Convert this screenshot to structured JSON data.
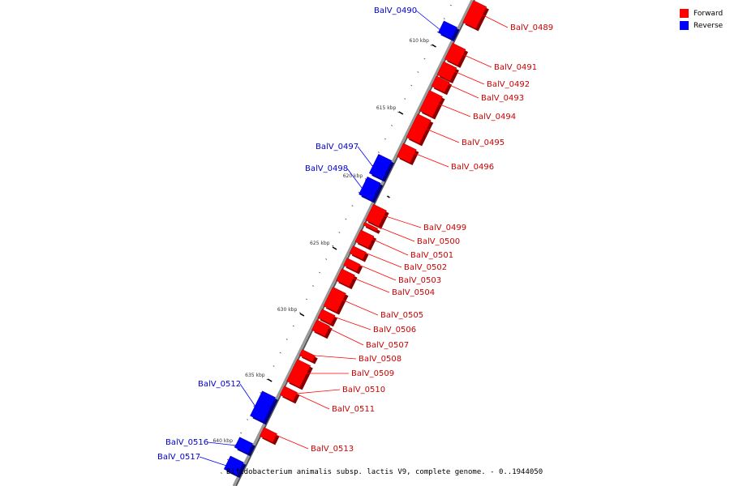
{
  "caption": "Bifidobacterium animalis subsp. lactis V9, complete genome. - 0..1944050",
  "legend": [
    {
      "label": "Forward",
      "color": "#ff0000"
    },
    {
      "label": "Reverse",
      "color": "#0000ff"
    }
  ],
  "colors": {
    "forward": "#ff0000",
    "reverse": "#0000ff",
    "forward_label": "#cc0000",
    "reverse_label": "#0000cc",
    "backbone": "#999999"
  },
  "scale_ticks": [
    "610 kbp",
    "615 kbp",
    "620 kbp",
    "625 kbp",
    "630 kbp",
    "635 kbp",
    "640 kbp"
  ],
  "genes": [
    {
      "name": "BalV_0489",
      "strand": "forward"
    },
    {
      "name": "BalV_0490",
      "strand": "reverse"
    },
    {
      "name": "BalV_0491",
      "strand": "forward"
    },
    {
      "name": "BalV_0492",
      "strand": "forward"
    },
    {
      "name": "BalV_0493",
      "strand": "forward"
    },
    {
      "name": "BalV_0494",
      "strand": "forward"
    },
    {
      "name": "BalV_0495",
      "strand": "forward"
    },
    {
      "name": "BalV_0496",
      "strand": "forward"
    },
    {
      "name": "BalV_0497",
      "strand": "reverse"
    },
    {
      "name": "BalV_0498",
      "strand": "reverse"
    },
    {
      "name": "BalV_0499",
      "strand": "forward"
    },
    {
      "name": "BalV_0500",
      "strand": "forward"
    },
    {
      "name": "BalV_0501",
      "strand": "forward"
    },
    {
      "name": "BalV_0502",
      "strand": "forward"
    },
    {
      "name": "BalV_0503",
      "strand": "forward"
    },
    {
      "name": "BalV_0504",
      "strand": "forward"
    },
    {
      "name": "BalV_0505",
      "strand": "forward"
    },
    {
      "name": "BalV_0506",
      "strand": "forward"
    },
    {
      "name": "BalV_0507",
      "strand": "forward"
    },
    {
      "name": "BalV_0508",
      "strand": "forward"
    },
    {
      "name": "BalV_0509",
      "strand": "forward"
    },
    {
      "name": "BalV_0510",
      "strand": "forward"
    },
    {
      "name": "BalV_0511",
      "strand": "forward"
    },
    {
      "name": "BalV_0512",
      "strand": "reverse"
    },
    {
      "name": "BalV_0513",
      "strand": "forward"
    },
    {
      "name": "BalV_0516",
      "strand": "reverse"
    },
    {
      "name": "BalV_0517",
      "strand": "reverse"
    }
  ]
}
